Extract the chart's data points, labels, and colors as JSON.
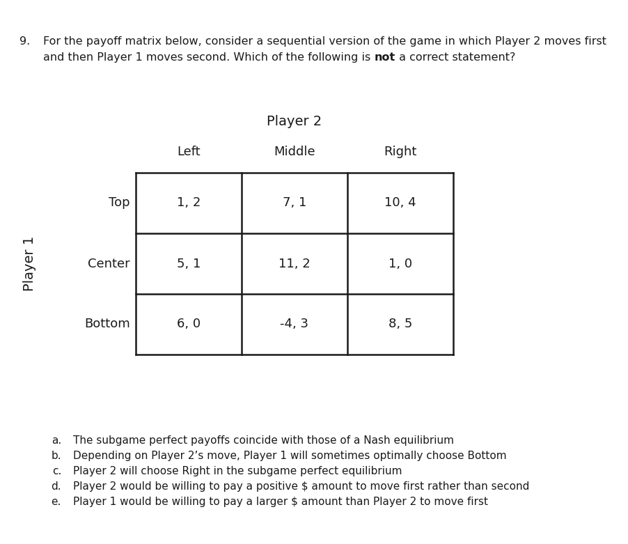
{
  "question_number": "9.",
  "question_text_line1": "For the payoff matrix below, consider a sequential version of the game in which Player 2 moves first",
  "question_text_line2_prefix": "and then Player 1 moves second. Which of the following is ",
  "question_text_bold": "not",
  "question_text_suffix": " a correct statement?",
  "player2_label": "Player 2",
  "player1_label": "Player 1",
  "col_headers": [
    "Left",
    "Middle",
    "Right"
  ],
  "row_headers": [
    "Top",
    "Center",
    "Bottom"
  ],
  "cell_values": [
    [
      "1, 2",
      "7, 1",
      "10, 4"
    ],
    [
      "5, 1",
      "11, 2",
      "1, 0"
    ],
    [
      "6, 0",
      "-4, 3",
      "8, 5"
    ]
  ],
  "answer_labels": [
    "a.",
    "b.",
    "c.",
    "d.",
    "e."
  ],
  "answer_texts": [
    "The subgame perfect payoffs coincide with those of a Nash equilibrium",
    "Depending on Player 2’s move, Player 1 will sometimes optimally choose Bottom",
    "Player 2 will choose Right in the subgame perfect equilibrium",
    "Player 2 would be willing to pay a positive $ amount to move first rather than second",
    "Player 1 would be willing to pay a larger $ amount than Player 2 to move first"
  ],
  "bg_color": "#ffffff",
  "text_color": "#1a1a1a",
  "grid_color": "#1a1a1a",
  "font_size_question": 11.5,
  "font_size_table_header": 13,
  "font_size_table_cell": 13,
  "font_size_answers": 11.0
}
